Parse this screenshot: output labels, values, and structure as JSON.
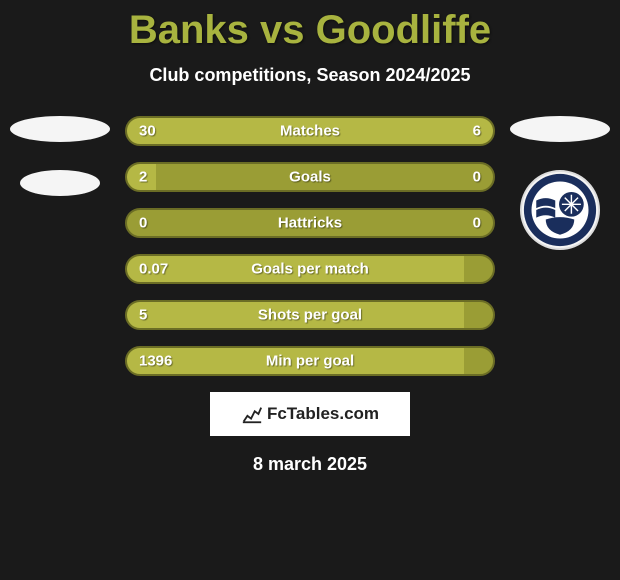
{
  "title": "Banks vs Goodliffe",
  "subtitle": "Club competitions, Season 2024/2025",
  "date": "8 march 2025",
  "watermark_text": "FcTables.com",
  "colors": {
    "background": "#1a1a1a",
    "title_color": "#a8b33f",
    "bar_outer": "#9a9d35",
    "bar_fill": "#b5b845",
    "bar_border": "#6b6d25",
    "text_white": "#ffffff"
  },
  "bars": [
    {
      "label": "Matches",
      "left": "30",
      "right": "6",
      "left_pct": 75,
      "right_pct": 25
    },
    {
      "label": "Goals",
      "left": "2",
      "right": "0",
      "left_pct": 8,
      "right_pct": 0
    },
    {
      "label": "Hattricks",
      "left": "0",
      "right": "0",
      "left_pct": 0,
      "right_pct": 0
    },
    {
      "label": "Goals per match",
      "left": "0.07",
      "right": "",
      "left_pct": 92,
      "right_pct": 0
    },
    {
      "label": "Shots per goal",
      "left": "5",
      "right": "",
      "left_pct": 92,
      "right_pct": 0
    },
    {
      "label": "Min per goal",
      "left": "1396",
      "right": "",
      "left_pct": 92,
      "right_pct": 0
    }
  ],
  "left_player": {
    "club_badge_type": "blank-ellipse"
  },
  "right_player": {
    "club_badge_type": "southend-united"
  }
}
